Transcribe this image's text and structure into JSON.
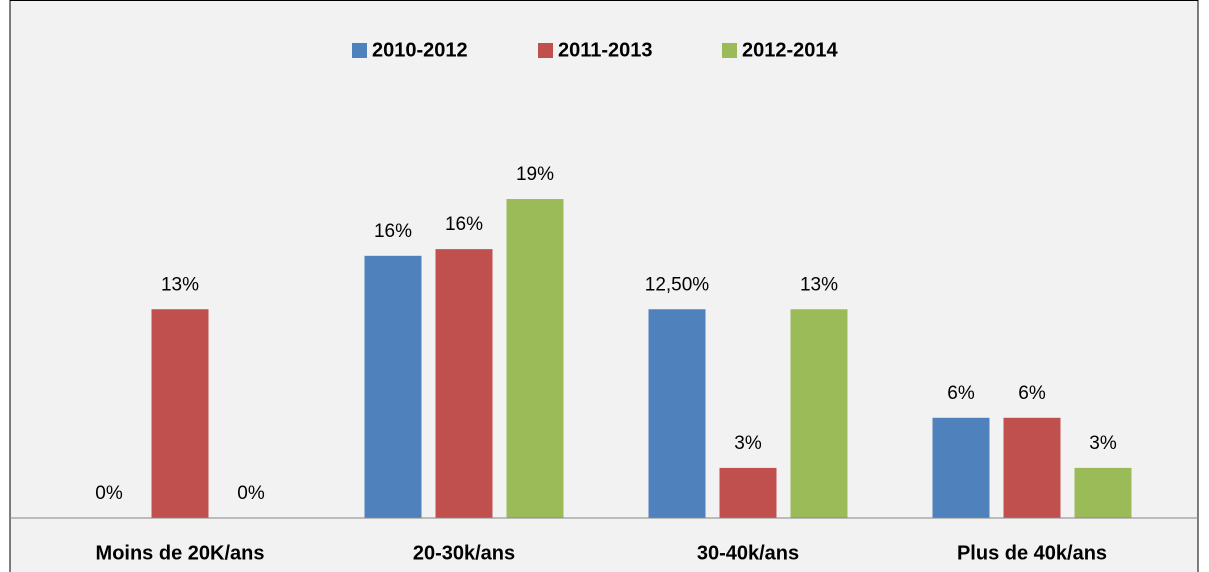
{
  "chart_data": {
    "type": "bar",
    "categories": [
      "Moins de 20K/ans",
      "20-30k/ans",
      "30-40k/ans",
      "Plus de 40k/ans"
    ],
    "series": [
      {
        "name": "2010-2012",
        "color": "#4f81bd",
        "values": [
          0,
          15.7,
          12.5,
          6
        ],
        "value_labels": [
          "0%",
          "16%",
          "12,50%",
          "6%"
        ]
      },
      {
        "name": "2011-2013",
        "color": "#c0504d",
        "values": [
          12.5,
          16.1,
          3,
          6
        ],
        "value_labels": [
          "13%",
          "16%",
          "3%",
          "6%"
        ]
      },
      {
        "name": "2012-2014",
        "color": "#9bbb59",
        "values": [
          0,
          19.1,
          12.5,
          3
        ],
        "value_labels": [
          "0%",
          "19%",
          "13%",
          "3%"
        ]
      }
    ],
    "ylim": [
      0,
      20
    ],
    "legend": "top"
  }
}
